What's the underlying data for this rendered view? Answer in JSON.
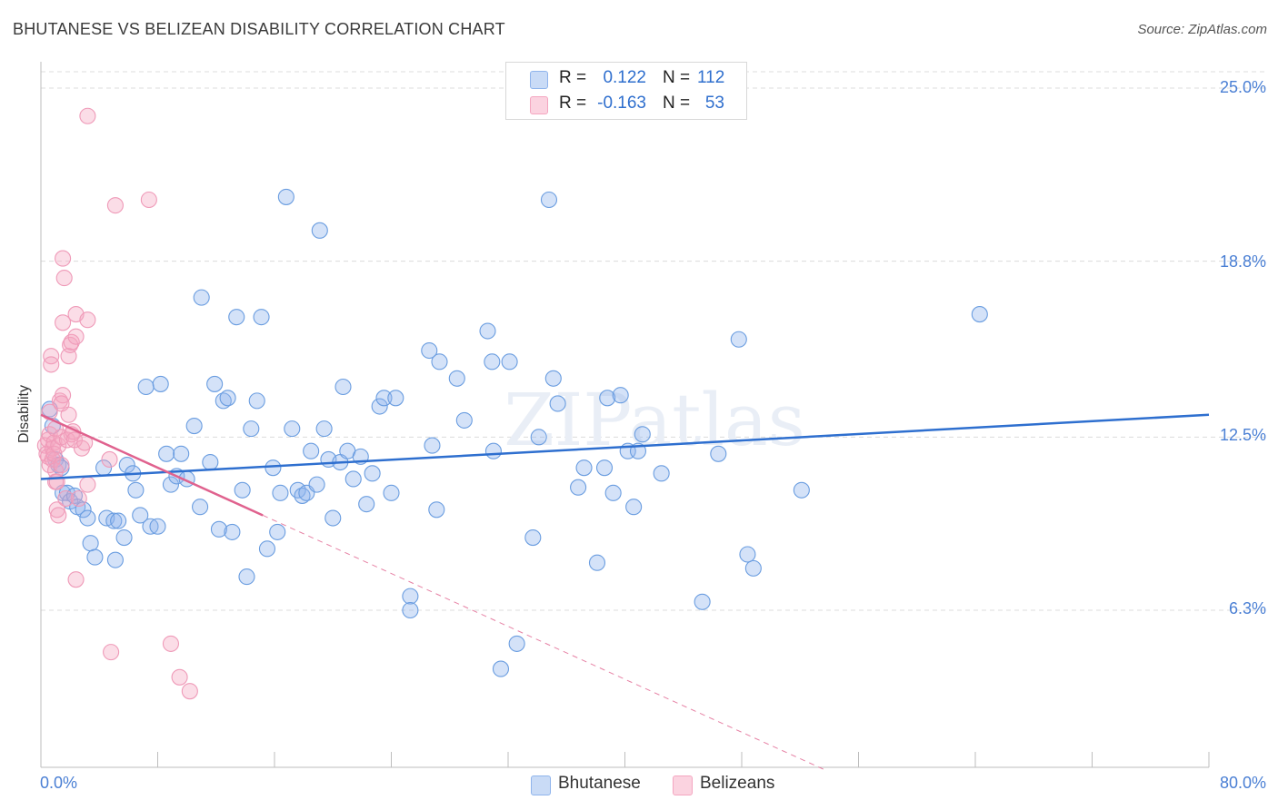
{
  "title": "BHUTANESE VS BELIZEAN DISABILITY CORRELATION CHART",
  "source": "Source: ZipAtlas.com",
  "watermark": "ZIPatlas",
  "legend": {
    "rows": [
      {
        "r_label": "R =",
        "r_value": "0.122",
        "n_label": "N =",
        "n_value": "112",
        "color": "#8fb4ec"
      },
      {
        "r_label": "R =",
        "r_value": "-0.163",
        "n_label": "N =",
        "n_value": "53",
        "color": "#f4a6c0"
      }
    ]
  },
  "bottom_legend": [
    "Bhutanese",
    "Belizeans"
  ],
  "colors": {
    "blue": "#6a9de0",
    "blue_line": "#2e6fcf",
    "pink": "#ef9ab8",
    "pink_line": "#e0628e",
    "axis_text": "#4a7fd4"
  },
  "chart_data": {
    "type": "scatter",
    "title": "BHUTANESE VS BELIZEAN DISABILITY CORRELATION CHART",
    "ylabel": "Disability",
    "xlabel": "",
    "xlim": [
      0,
      80
    ],
    "ylim": [
      0,
      26
    ],
    "x_tick_labels": [
      "0.0%",
      "80.0%"
    ],
    "y_ticks": [
      6.3,
      12.5,
      18.8,
      25.0
    ],
    "y_tick_labels": [
      "6.3%",
      "12.5%",
      "18.8%",
      "25.0%"
    ],
    "grid": "horizontal dashed",
    "series": [
      {
        "name": "Bhutanese",
        "r": 0.122,
        "n": 112,
        "trend": {
          "x0": 0,
          "y0": 11.0,
          "x1": 80,
          "y1": 13.3
        },
        "points": [
          [
            0.6,
            13.5
          ],
          [
            0.8,
            12.9
          ],
          [
            1.0,
            11.7
          ],
          [
            1.2,
            11.5
          ],
          [
            1.4,
            11.4
          ],
          [
            1.5,
            10.5
          ],
          [
            1.8,
            10.5
          ],
          [
            2.0,
            10.2
          ],
          [
            2.3,
            10.4
          ],
          [
            2.5,
            10.0
          ],
          [
            2.9,
            9.9
          ],
          [
            3.2,
            9.6
          ],
          [
            3.4,
            8.7
          ],
          [
            3.7,
            8.2
          ],
          [
            4.3,
            11.4
          ],
          [
            4.5,
            9.6
          ],
          [
            5.0,
            9.5
          ],
          [
            5.1,
            8.1
          ],
          [
            5.3,
            9.5
          ],
          [
            5.7,
            8.9
          ],
          [
            5.9,
            11.5
          ],
          [
            6.3,
            11.2
          ],
          [
            6.5,
            10.6
          ],
          [
            6.8,
            9.7
          ],
          [
            7.2,
            14.3
          ],
          [
            7.5,
            9.3
          ],
          [
            8.0,
            9.3
          ],
          [
            8.2,
            14.4
          ],
          [
            8.6,
            11.9
          ],
          [
            8.9,
            10.8
          ],
          [
            9.3,
            11.1
          ],
          [
            9.6,
            11.9
          ],
          [
            10.0,
            11.0
          ],
          [
            10.5,
            12.9
          ],
          [
            10.9,
            10.0
          ],
          [
            11.0,
            17.5
          ],
          [
            11.6,
            11.6
          ],
          [
            11.9,
            14.4
          ],
          [
            12.2,
            9.2
          ],
          [
            12.5,
            13.8
          ],
          [
            12.8,
            13.9
          ],
          [
            13.1,
            9.1
          ],
          [
            13.4,
            16.8
          ],
          [
            13.8,
            10.6
          ],
          [
            14.1,
            7.5
          ],
          [
            14.4,
            12.8
          ],
          [
            14.8,
            13.8
          ],
          [
            15.1,
            16.8
          ],
          [
            15.5,
            8.5
          ],
          [
            15.9,
            11.4
          ],
          [
            16.2,
            9.1
          ],
          [
            16.4,
            10.5
          ],
          [
            16.8,
            21.1
          ],
          [
            17.2,
            12.8
          ],
          [
            17.6,
            10.6
          ],
          [
            17.9,
            10.4
          ],
          [
            18.2,
            10.5
          ],
          [
            18.5,
            12.0
          ],
          [
            18.9,
            10.8
          ],
          [
            19.1,
            19.9
          ],
          [
            19.4,
            12.8
          ],
          [
            19.7,
            11.7
          ],
          [
            20.0,
            9.6
          ],
          [
            20.5,
            11.6
          ],
          [
            20.7,
            14.3
          ],
          [
            21.0,
            12.0
          ],
          [
            21.4,
            11.0
          ],
          [
            21.9,
            11.8
          ],
          [
            22.3,
            10.1
          ],
          [
            22.7,
            11.2
          ],
          [
            23.2,
            13.6
          ],
          [
            23.5,
            13.9
          ],
          [
            24.0,
            10.5
          ],
          [
            24.3,
            13.9
          ],
          [
            25.3,
            6.8
          ],
          [
            25.3,
            6.3
          ],
          [
            26.6,
            15.6
          ],
          [
            26.8,
            12.2
          ],
          [
            27.1,
            9.9
          ],
          [
            27.3,
            15.2
          ],
          [
            28.5,
            14.6
          ],
          [
            29.0,
            13.1
          ],
          [
            30.6,
            16.3
          ],
          [
            30.9,
            15.2
          ],
          [
            31.0,
            12.0
          ],
          [
            31.5,
            4.2
          ],
          [
            32.1,
            15.2
          ],
          [
            32.6,
            5.1
          ],
          [
            33.7,
            8.9
          ],
          [
            34.1,
            12.5
          ],
          [
            34.8,
            21.0
          ],
          [
            35.1,
            14.6
          ],
          [
            35.4,
            13.7
          ],
          [
            36.8,
            10.7
          ],
          [
            37.2,
            11.4
          ],
          [
            38.1,
            8.0
          ],
          [
            38.6,
            11.4
          ],
          [
            38.8,
            13.9
          ],
          [
            39.2,
            10.5
          ],
          [
            39.7,
            14.0
          ],
          [
            40.2,
            12.0
          ],
          [
            40.6,
            10.0
          ],
          [
            40.9,
            12.0
          ],
          [
            41.2,
            12.6
          ],
          [
            42.5,
            11.2
          ],
          [
            45.3,
            6.6
          ],
          [
            46.4,
            11.9
          ],
          [
            47.8,
            16.0
          ],
          [
            48.8,
            7.8
          ],
          [
            48.4,
            8.3
          ],
          [
            64.3,
            16.9
          ],
          [
            52.1,
            10.6
          ]
        ]
      },
      {
        "name": "Belizeans",
        "r": -0.163,
        "n": 53,
        "trend": {
          "x0": 0,
          "y0": 13.3,
          "x1": 15.2,
          "y1": 9.7,
          "dashed_to_x": 80
        },
        "points": [
          [
            0.3,
            12.2
          ],
          [
            0.4,
            11.9
          ],
          [
            0.5,
            11.8
          ],
          [
            0.5,
            12.4
          ],
          [
            0.6,
            12.6
          ],
          [
            0.6,
            11.5
          ],
          [
            0.7,
            15.4
          ],
          [
            0.7,
            15.1
          ],
          [
            0.8,
            12.1
          ],
          [
            0.8,
            11.7
          ],
          [
            0.9,
            12.3
          ],
          [
            0.9,
            11.9
          ],
          [
            1.0,
            12.8
          ],
          [
            1.0,
            11.3
          ],
          [
            1.0,
            10.9
          ],
          [
            1.1,
            10.9
          ],
          [
            1.1,
            9.9
          ],
          [
            1.2,
            9.7
          ],
          [
            1.2,
            12.2
          ],
          [
            1.3,
            13.8
          ],
          [
            1.4,
            12.5
          ],
          [
            1.4,
            11.5
          ],
          [
            1.5,
            14.0
          ],
          [
            1.5,
            16.6
          ],
          [
            1.5,
            18.9
          ],
          [
            1.6,
            18.2
          ],
          [
            1.7,
            10.3
          ],
          [
            1.8,
            12.4
          ],
          [
            1.9,
            13.3
          ],
          [
            1.9,
            15.4
          ],
          [
            2.0,
            15.8
          ],
          [
            2.1,
            15.9
          ],
          [
            2.1,
            12.6
          ],
          [
            2.2,
            12.7
          ],
          [
            2.3,
            12.4
          ],
          [
            2.4,
            16.1
          ],
          [
            2.4,
            16.9
          ],
          [
            2.6,
            10.3
          ],
          [
            2.8,
            12.1
          ],
          [
            2.4,
            7.4
          ],
          [
            3.0,
            12.3
          ],
          [
            3.2,
            16.7
          ],
          [
            3.2,
            10.8
          ],
          [
            3.2,
            24.0
          ],
          [
            4.7,
            11.7
          ],
          [
            5.1,
            20.8
          ],
          [
            4.8,
            4.8
          ],
          [
            7.4,
            21.0
          ],
          [
            8.9,
            5.1
          ],
          [
            9.5,
            3.9
          ],
          [
            10.2,
            3.4
          ],
          [
            0.6,
            13.4
          ],
          [
            1.4,
            13.7
          ]
        ]
      }
    ]
  }
}
